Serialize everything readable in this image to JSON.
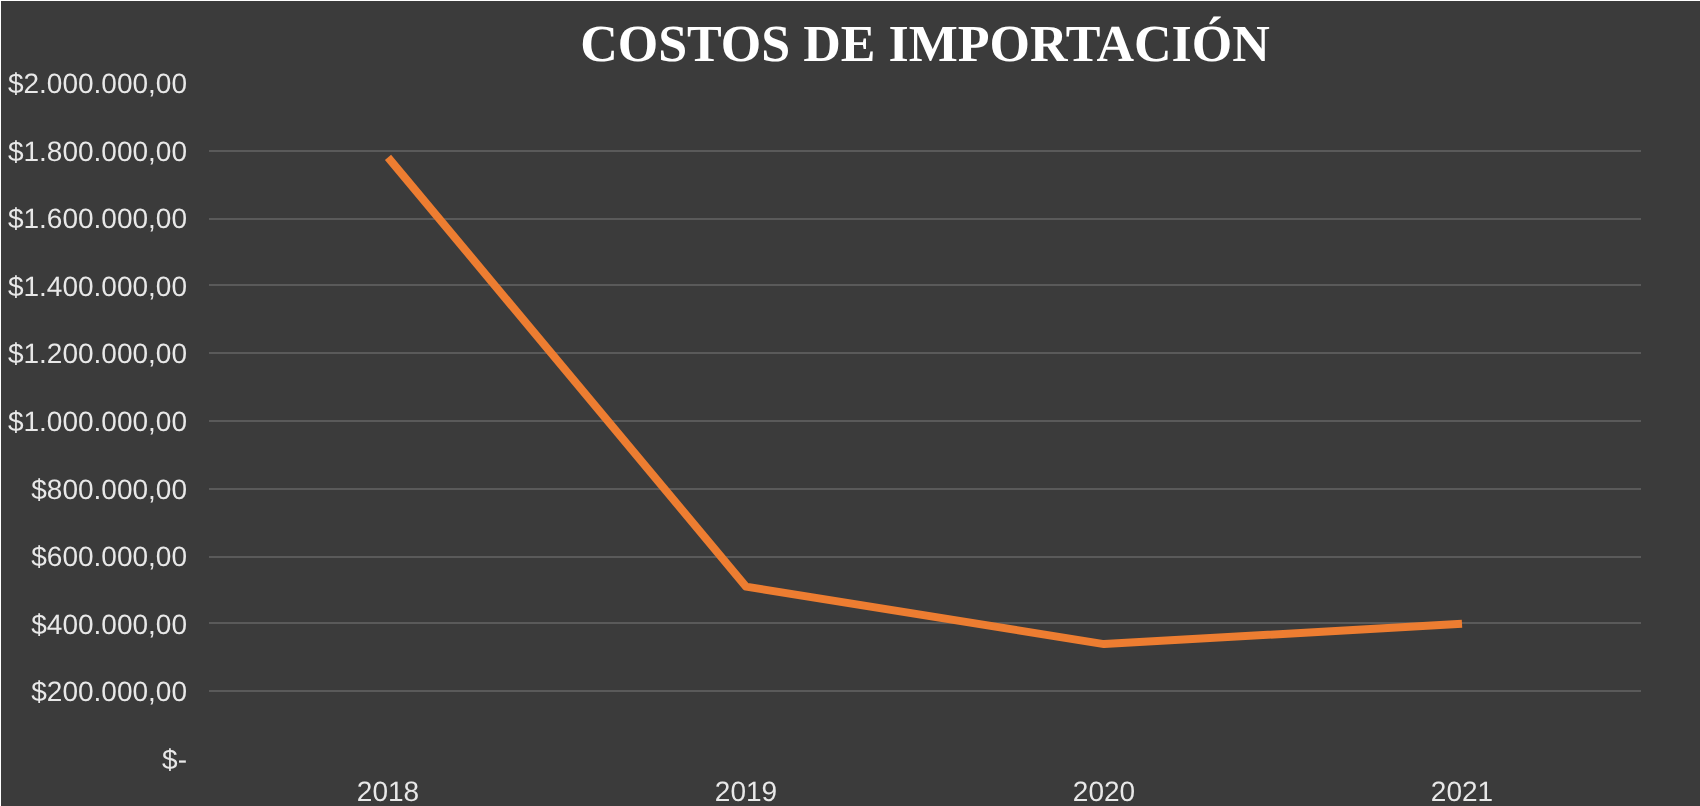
{
  "chart_data": {
    "type": "line",
    "title": "COSTOS DE IMPORTACIÓN",
    "categories": [
      "2018",
      "2019",
      "2020",
      "2021"
    ],
    "series": [
      {
        "color": "#ed7d31",
        "values": [
          1780000,
          510000,
          340000,
          400000
        ]
      }
    ],
    "ylim": [
      0,
      2000000
    ],
    "yticks": [
      {
        "value": 0,
        "label": "$-"
      },
      {
        "value": 200000,
        "label": "$200.000,00"
      },
      {
        "value": 400000,
        "label": "$400.000,00"
      },
      {
        "value": 600000,
        "label": "$600.000,00"
      },
      {
        "value": 800000,
        "label": "$800.000,00"
      },
      {
        "value": 1000000,
        "label": "$1.000.000,00"
      },
      {
        "value": 1200000,
        "label": "$1.200.000,00"
      },
      {
        "value": 1400000,
        "label": "$1.400.000,00"
      },
      {
        "value": 1600000,
        "label": "$1.600.000,00"
      },
      {
        "value": 1800000,
        "label": "$1.800.000,00"
      },
      {
        "value": 2000000,
        "label": "$2.000.000,00"
      }
    ],
    "grid": "y",
    "marker": "none",
    "line_style": "solid"
  }
}
